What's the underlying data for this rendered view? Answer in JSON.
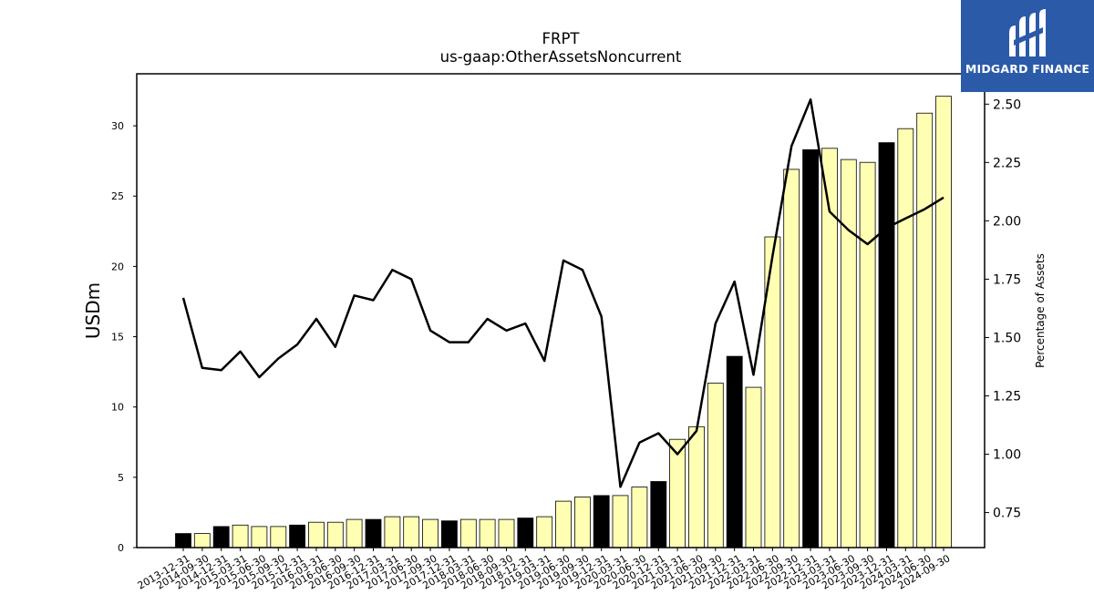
{
  "brand": {
    "logo_text": "MIDGARD FINANCE",
    "logo_color": "#2b5aa8"
  },
  "chart_data": {
    "type": "bar",
    "title": "FRPT",
    "subtitle": "us-gaap:OtherAssetsNoncurrent",
    "ylabel": "USDm",
    "y2label": "Percentage of Assets",
    "ylim": [
      0,
      33.7
    ],
    "y2lim": [
      0.6,
      2.63
    ],
    "yticks": [
      0,
      5,
      10,
      15,
      20,
      25,
      30
    ],
    "y2ticks": [
      "0.75",
      "1.00",
      "1.25",
      "1.50",
      "1.75",
      "2.00",
      "2.25",
      "2.50"
    ],
    "grid": false,
    "bar_colors": {
      "annual": "#000000",
      "quarterly": "#ffffb3"
    },
    "line_color": "#000000",
    "categories": [
      "2013-12-31",
      "2014-09-30",
      "2014-12-31",
      "2015-03-31",
      "2015-06-30",
      "2015-09-30",
      "2015-12-31",
      "2016-03-31",
      "2016-06-30",
      "2016-09-30",
      "2016-12-31",
      "2017-03-31",
      "2017-06-30",
      "2017-09-30",
      "2017-12-31",
      "2018-03-31",
      "2018-06-30",
      "2018-09-30",
      "2018-12-31",
      "2019-03-31",
      "2019-06-30",
      "2019-09-30",
      "2019-12-31",
      "2020-03-31",
      "2020-06-30",
      "2020-12-31",
      "2021-03-31",
      "2021-06-30",
      "2021-09-30",
      "2021-12-31",
      "2022-03-31",
      "2022-06-30",
      "2022-09-30",
      "2022-12-31",
      "2023-03-31",
      "2023-06-30",
      "2023-09-30",
      "2023-12-31",
      "2024-03-31",
      "2024-06-30",
      "2024-09-30"
    ],
    "series": [
      {
        "type": "bar",
        "values": [
          1.0,
          1.0,
          1.5,
          1.6,
          1.5,
          1.5,
          1.6,
          1.8,
          1.8,
          2.0,
          2.0,
          2.2,
          2.2,
          2.0,
          1.9,
          2.0,
          2.0,
          2.0,
          2.1,
          2.2,
          3.3,
          3.6,
          3.7,
          3.7,
          4.3,
          4.7,
          7.7,
          8.6,
          11.7,
          13.6,
          11.4,
          22.1,
          26.9,
          28.3,
          28.4,
          27.6,
          27.4,
          28.8,
          29.8,
          30.9,
          32.1
        ],
        "annual_flags": [
          true,
          false,
          true,
          false,
          false,
          false,
          true,
          false,
          false,
          false,
          true,
          false,
          false,
          false,
          true,
          false,
          false,
          false,
          true,
          false,
          false,
          false,
          true,
          false,
          false,
          true,
          false,
          false,
          false,
          true,
          false,
          false,
          false,
          true,
          false,
          false,
          false,
          true,
          false,
          false,
          false
        ]
      },
      {
        "type": "line",
        "axis": "right",
        "values": [
          1.67,
          1.37,
          1.36,
          1.44,
          1.33,
          1.41,
          1.47,
          1.58,
          1.46,
          1.68,
          1.66,
          1.79,
          1.75,
          1.53,
          1.48,
          1.48,
          1.58,
          1.53,
          1.56,
          1.4,
          1.83,
          1.79,
          1.59,
          0.86,
          1.05,
          1.09,
          1.0,
          1.1,
          1.56,
          1.74,
          1.34,
          1.85,
          2.32,
          2.52,
          2.04,
          1.96,
          1.9,
          1.97,
          2.01,
          2.05,
          2.1
        ]
      }
    ]
  }
}
